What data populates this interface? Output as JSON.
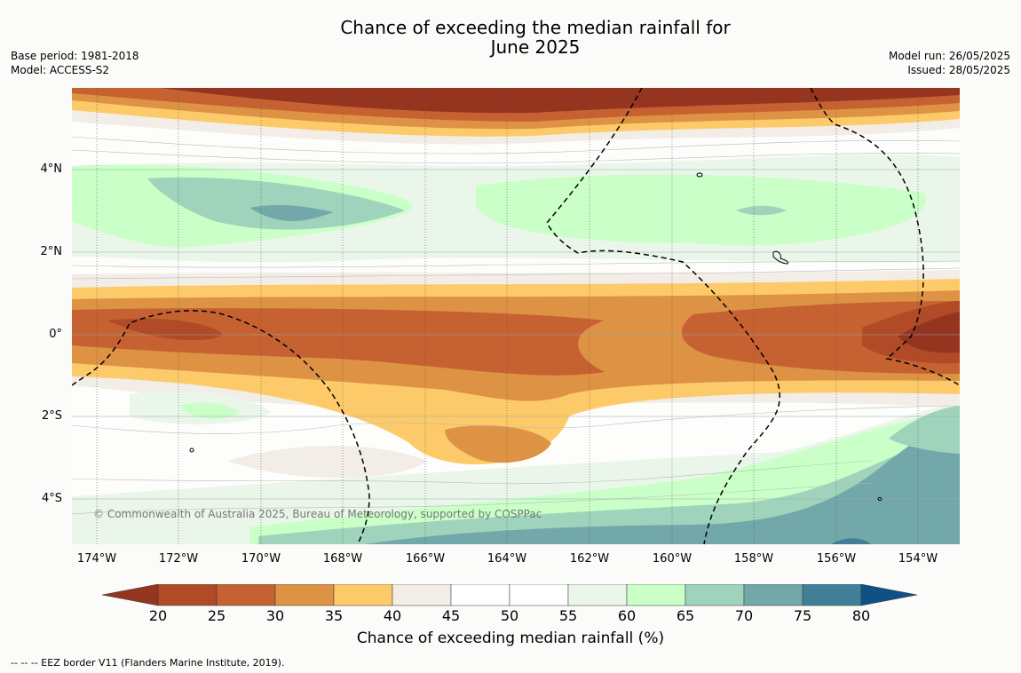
{
  "title_line1": "Chance of exceeding the median rainfall for",
  "title_line2": "June 2025",
  "base_period": "Base period: 1981-2018",
  "model": "Model: ACCESS-S2",
  "model_run": "Model run: 26/05/2025",
  "issued": "Issued: 28/05/2025",
  "y_ticks": [
    "4°N",
    "2°N",
    "0°",
    "2°S",
    "4°S"
  ],
  "x_ticks": [
    "174°W",
    "172°W",
    "170°W",
    "168°W",
    "166°W",
    "164°W",
    "162°W",
    "160°W",
    "158°W",
    "156°W",
    "154°W"
  ],
  "copyright": "© Commonwealth of Australia 2025, Bureau of Meteorology, supported by COSPPac",
  "colorbar": {
    "labels": [
      "20",
      "25",
      "30",
      "35",
      "40",
      "45",
      "50",
      "55",
      "60",
      "65",
      "70",
      "75",
      "80"
    ],
    "title": "Chance of exceeding median rainfall (%)",
    "colors": [
      "#953520",
      "#b14a26",
      "#c66232",
      "#dd9244",
      "#fdca6a",
      "#f2ede6",
      "#ffffff",
      "#ffffff",
      "#ebf6ea",
      "#caffc8",
      "#9fd3bc",
      "#72a8a9",
      "#417f98",
      "#0f5186"
    ]
  },
  "legend_note": "--  --  -- EEZ border V11 (Flanders Marine Institute, 2019)."
}
